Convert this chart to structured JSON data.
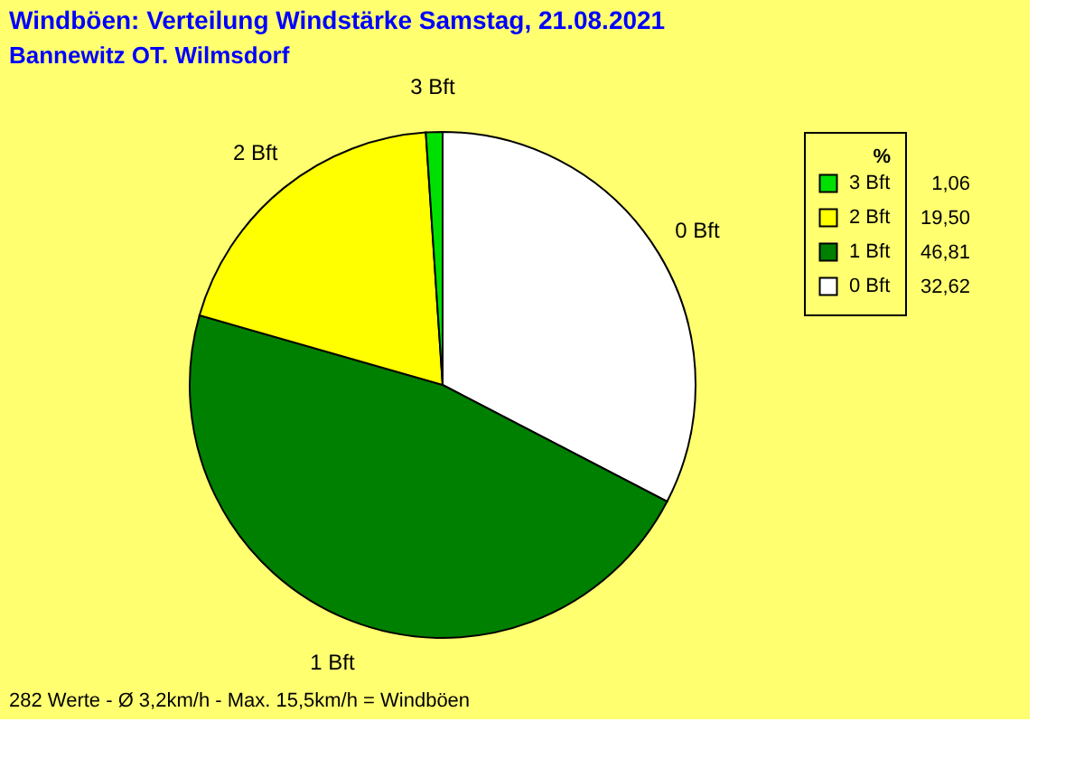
{
  "chart_data": {
    "type": "pie",
    "title": "Windböen: Verteilung Windstärke  Samstag, 21.08.2021",
    "subtitle": "Bannewitz OT. Wilmsdorf",
    "legend_title": "%",
    "legend": "top right",
    "categories": [
      "0 Bft",
      "1 Bft",
      "2 Bft",
      "3 Bft"
    ],
    "values": [
      32.62,
      46.81,
      19.5,
      1.06
    ],
    "value_labels": [
      "32,62",
      "46,81",
      "19,50",
      "1,06"
    ],
    "colors": [
      "#ffffff",
      "#008000",
      "#ffff00",
      "#00e000"
    ],
    "annotations": [
      "282 Werte   -   Ø 3,2km/h   -   Max. 15,5km/h = Windböen"
    ]
  }
}
